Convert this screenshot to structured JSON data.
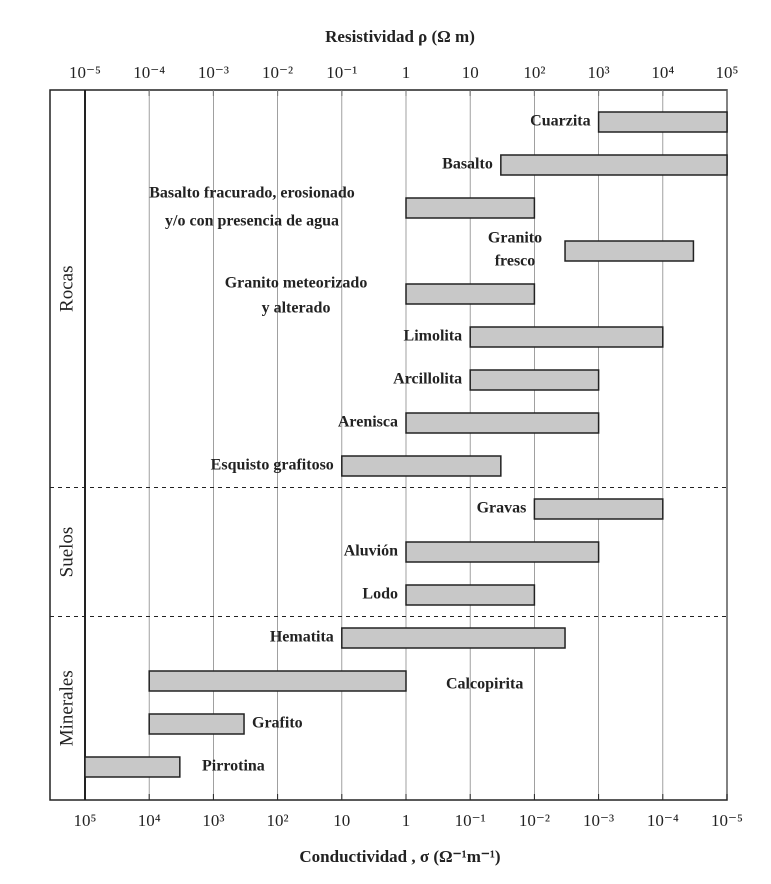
{
  "chart_data": {
    "type": "range-bar",
    "x_label": "Resistividad ρ (Ω m)",
    "x2_label": "Conductividad , σ (Ω⁻¹m⁻¹)",
    "log_scale": true,
    "grid": true,
    "xlim": [
      1e-05,
      100000
    ],
    "xticks": [
      {
        "value": 1e-05,
        "label": "10⁻⁵"
      },
      {
        "value": 0.0001,
        "label": "10⁻⁴"
      },
      {
        "value": 0.001,
        "label": "10⁻³"
      },
      {
        "value": 0.01,
        "label": "10⁻²"
      },
      {
        "value": 0.1,
        "label": "10⁻¹"
      },
      1,
      10,
      {
        "value": 100,
        "label": "10²"
      },
      {
        "value": 1000,
        "label": "10³"
      },
      {
        "value": 10000,
        "label": "10⁴"
      },
      {
        "value": 100000,
        "label": "10⁵"
      }
    ],
    "x2lim": [
      100000,
      1e-05
    ],
    "x2ticks": [
      {
        "value": 100000,
        "label": "10⁵"
      },
      {
        "value": 10000,
        "label": "10⁴"
      },
      {
        "value": 1000,
        "label": "10³"
      },
      {
        "value": 100,
        "label": "10²"
      },
      10,
      1,
      {
        "value": 0.1,
        "label": "10⁻¹"
      },
      {
        "value": 0.01,
        "label": "10⁻²"
      },
      {
        "value": 0.001,
        "label": "10⁻³"
      },
      {
        "value": 0.0001,
        "label": "10⁻⁴"
      },
      {
        "value": 1e-05,
        "label": "10⁻⁵"
      }
    ],
    "groups": [
      {
        "name": "Rocas",
        "count": 9
      },
      {
        "name": "Suelos",
        "count": 3
      },
      {
        "name": "Minerales",
        "count": 4
      }
    ],
    "color": "#c8c8c8",
    "categories": [
      "Cuarzita",
      "Basalto",
      [
        "Basalto fracurado, erosionado",
        "y/o con presencia de agua"
      ],
      [
        "Granito",
        "fresco"
      ],
      [
        "Granito meteorizado",
        "y alterado"
      ],
      "Limolita",
      "Arcillolita",
      "Arenisca",
      "Esquisto grafitoso",
      "Gravas",
      "Aluvión",
      "Lodo",
      "Hematita",
      "Calcopirita",
      "Grafito",
      "Pirrotina"
    ],
    "ranges": [
      [
        1000,
        100000
      ],
      [
        30,
        100000
      ],
      [
        1,
        100
      ],
      [
        300,
        30000
      ],
      [
        1,
        100
      ],
      [
        10,
        10000
      ],
      [
        10,
        1000
      ],
      [
        1,
        1000
      ],
      [
        0.1,
        30
      ],
      [
        100,
        10000
      ],
      [
        1,
        1000
      ],
      [
        1,
        100
      ],
      [
        0.1,
        300
      ],
      [
        0.0001,
        1
      ],
      [
        0.0001,
        0.003
      ],
      [
        1e-05,
        0.0003
      ]
    ]
  }
}
